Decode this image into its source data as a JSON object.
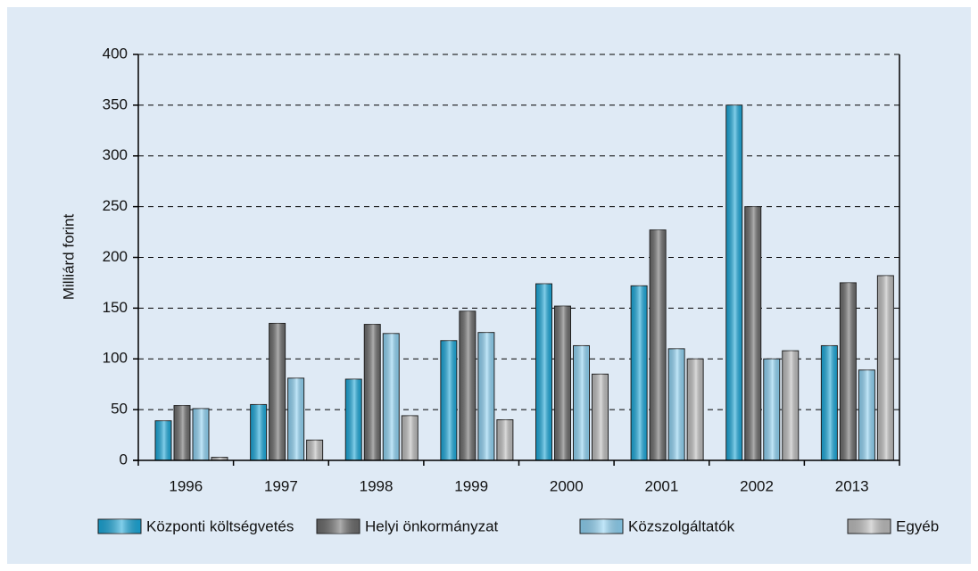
{
  "chart_data": {
    "type": "bar",
    "y_label": "Milliárd forint",
    "categories": [
      "1996",
      "1997",
      "1998",
      "1999",
      "2000",
      "2001",
      "2002",
      "2013"
    ],
    "series": [
      {
        "name": "Központi költségvetés",
        "color": "#1aa7d9",
        "values": [
          39,
          55,
          80,
          118,
          174,
          172,
          350,
          113
        ]
      },
      {
        "name": "Helyi önkormányzat",
        "color": "#6b6b6b",
        "values": [
          54,
          135,
          134,
          147,
          152,
          227,
          250,
          175
        ]
      },
      {
        "name": "Közszolgáltatók",
        "color": "#8fd3f4",
        "values": [
          51,
          81,
          125,
          126,
          113,
          110,
          100,
          89
        ]
      },
      {
        "name": "Egyéb",
        "color": "#bdbdbd",
        "values": [
          3,
          20,
          44,
          40,
          85,
          100,
          108,
          182
        ]
      }
    ],
    "ylim": [
      0,
      400
    ],
    "yticks": [
      0,
      50,
      100,
      150,
      200,
      250,
      300,
      350,
      400
    ],
    "grid": true
  }
}
